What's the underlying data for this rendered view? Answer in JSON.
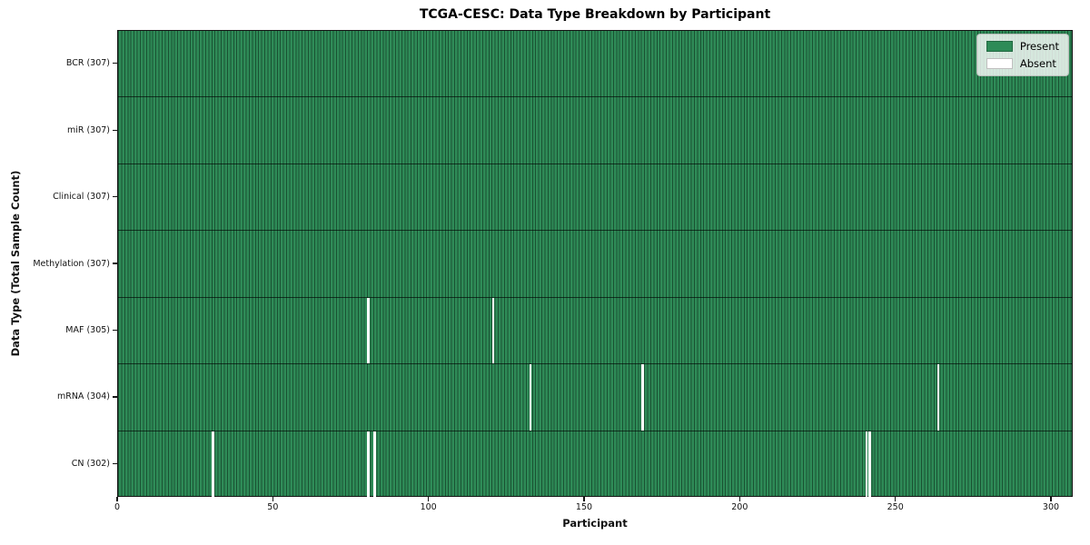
{
  "figure": {
    "title": "TCGA-CESC: Data Type Breakdown by Participant",
    "xlabel": "Participant",
    "ylabel": "Data Type (Total Sample Count)"
  },
  "colors": {
    "present": "#2e8b57",
    "absent": "#ffffff",
    "cell_edge": "#1c4a30",
    "spine": "#151515"
  },
  "chart_data": {
    "type": "heatmap",
    "title": "TCGA-CESC: Data Type Breakdown by Participant",
    "xlabel": "Participant",
    "ylabel": "Data Type (Total Sample Count)",
    "x_ticks": [
      0,
      50,
      100,
      150,
      200,
      250,
      300
    ],
    "xlim": [
      0,
      307
    ],
    "n_participants": 307,
    "grid": false,
    "legend_position": "upper right",
    "legend": [
      {
        "label": "Present",
        "color": "#2e8b57"
      },
      {
        "label": "Absent",
        "color": "#ffffff"
      }
    ],
    "rows": [
      {
        "label": "BCR (307)",
        "data_type": "BCR",
        "total_samples": 307,
        "absent_participants": []
      },
      {
        "label": "miR (307)",
        "data_type": "miR",
        "total_samples": 307,
        "absent_participants": []
      },
      {
        "label": "Clinical (307)",
        "data_type": "Clinical",
        "total_samples": 307,
        "absent_participants": []
      },
      {
        "label": "Methylation (307)",
        "data_type": "Methylation",
        "total_samples": 307,
        "absent_participants": []
      },
      {
        "label": "MAF (305)",
        "data_type": "MAF",
        "total_samples": 305,
        "absent_participants": [
          80,
          120
        ]
      },
      {
        "label": "mRNA (304)",
        "data_type": "mRNA",
        "total_samples": 304,
        "absent_participants": [
          132,
          168,
          263
        ]
      },
      {
        "label": "CN (302)",
        "data_type": "CN",
        "total_samples": 302,
        "absent_participants": [
          30,
          80,
          82,
          240,
          241
        ]
      }
    ]
  }
}
